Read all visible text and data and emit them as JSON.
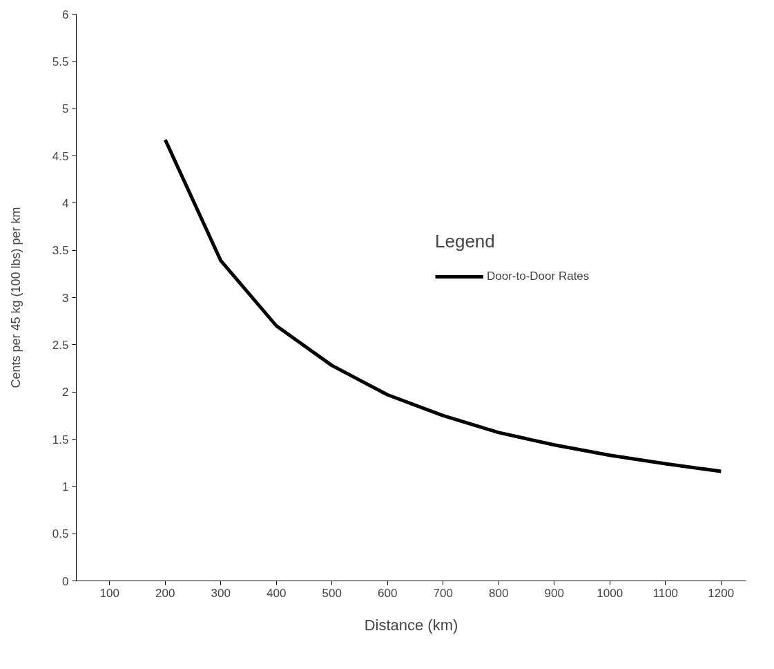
{
  "chart_data": {
    "type": "line",
    "xlabel": "Distance (km)",
    "ylabel": "Cents per 45 kg (100 lbs) per km",
    "legend_title": "Legend",
    "legend": "right",
    "x": [
      200,
      300,
      400,
      500,
      600,
      700,
      800,
      900,
      1000,
      1100,
      1200
    ],
    "series": [
      {
        "name": "Door-to-Door Rates",
        "color": "#000000",
        "values": [
          4.67,
          3.39,
          2.7,
          2.28,
          1.97,
          1.75,
          1.57,
          1.44,
          1.33,
          1.24,
          1.16
        ]
      }
    ],
    "xlim": [
      40,
      1245
    ],
    "xticks": [
      100,
      200,
      300,
      400,
      500,
      600,
      700,
      800,
      900,
      1000,
      1100,
      1200
    ],
    "ylim": [
      0,
      6
    ],
    "yticks": [
      0,
      0.5,
      1,
      1.5,
      2,
      2.5,
      3,
      3.5,
      4,
      4.5,
      5,
      5.5,
      6
    ],
    "grid": false
  }
}
